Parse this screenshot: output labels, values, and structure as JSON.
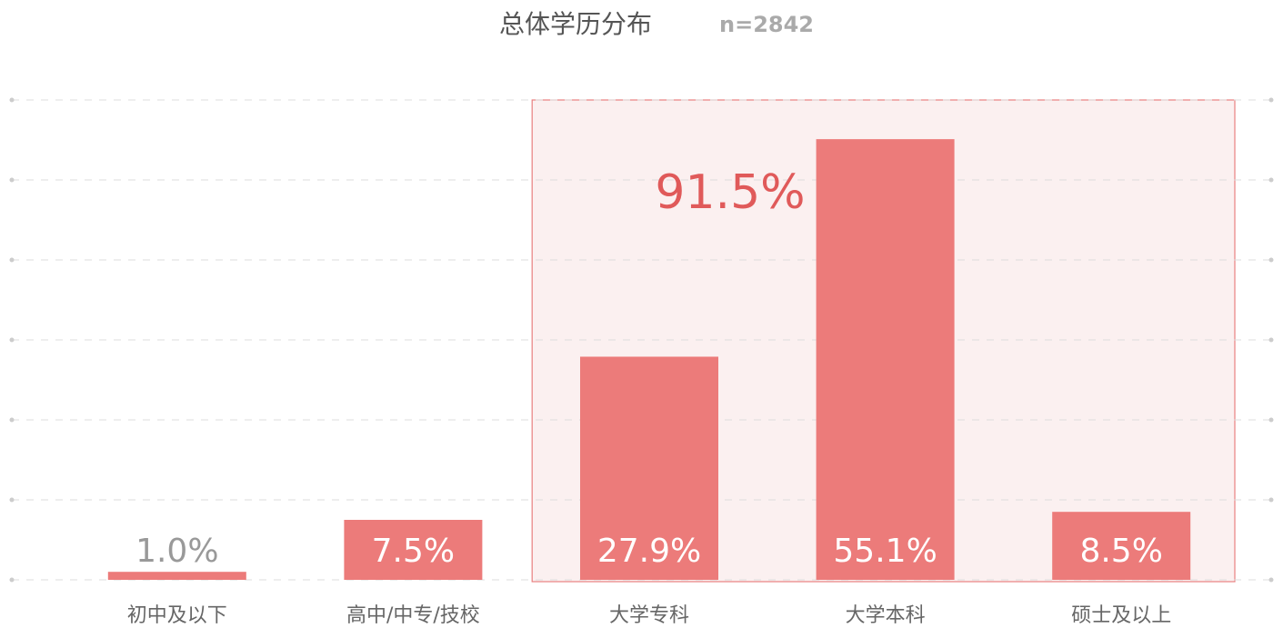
{
  "chart_data": {
    "type": "bar",
    "title": "总体学历分布",
    "subtitle": "n=2842",
    "categories": [
      "初中及以下",
      "高中/中专/技校",
      "大学专科",
      "大学本科",
      "硕士及以上"
    ],
    "values": [
      1.0,
      7.5,
      27.9,
      55.1,
      8.5
    ],
    "value_labels": [
      "1.0%",
      "7.5%",
      "27.9%",
      "55.1%",
      "8.5%"
    ],
    "color": "#ec7b7a",
    "ylim": [
      0,
      60
    ],
    "yticks": [
      0,
      10,
      20,
      30,
      40,
      50,
      60
    ],
    "grid": true,
    "highlight": {
      "from": "大学专科",
      "to": "硕士及以上",
      "label": "91.5%",
      "color": "#e05a5a"
    }
  }
}
